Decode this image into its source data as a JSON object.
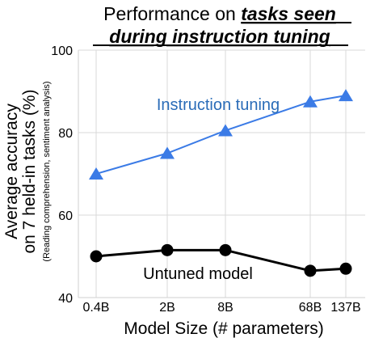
{
  "chart_data": {
    "type": "line",
    "title_line1_prefix": "Performance on ",
    "title_line1_emph": "tasks seen",
    "title_line2_emph": "during instruction tuning",
    "xlabel": "Model Size (# parameters)",
    "ylabel_line1": "Average accuracy",
    "ylabel_line2": "on 7 held-in tasks (%)",
    "ylabel_note": "(Reading comprehension, sentiment analysis)",
    "categories": [
      "0.4B",
      "2B",
      "8B",
      "68B",
      "137B"
    ],
    "ylim": [
      40,
      100
    ],
    "yticks": [
      40,
      60,
      80,
      100
    ],
    "grid": true,
    "series": [
      {
        "name": "Instruction tuning",
        "color": "#3b7be6",
        "marker": "triangle",
        "label_color": "#2a6cb8",
        "values": [
          70.0,
          75.0,
          80.5,
          87.5,
          89.0
        ]
      },
      {
        "name": "Untuned model",
        "color": "#000000",
        "marker": "circle",
        "label_color": "#000000",
        "values": [
          50.0,
          51.5,
          51.5,
          46.5,
          47.0
        ]
      }
    ]
  }
}
